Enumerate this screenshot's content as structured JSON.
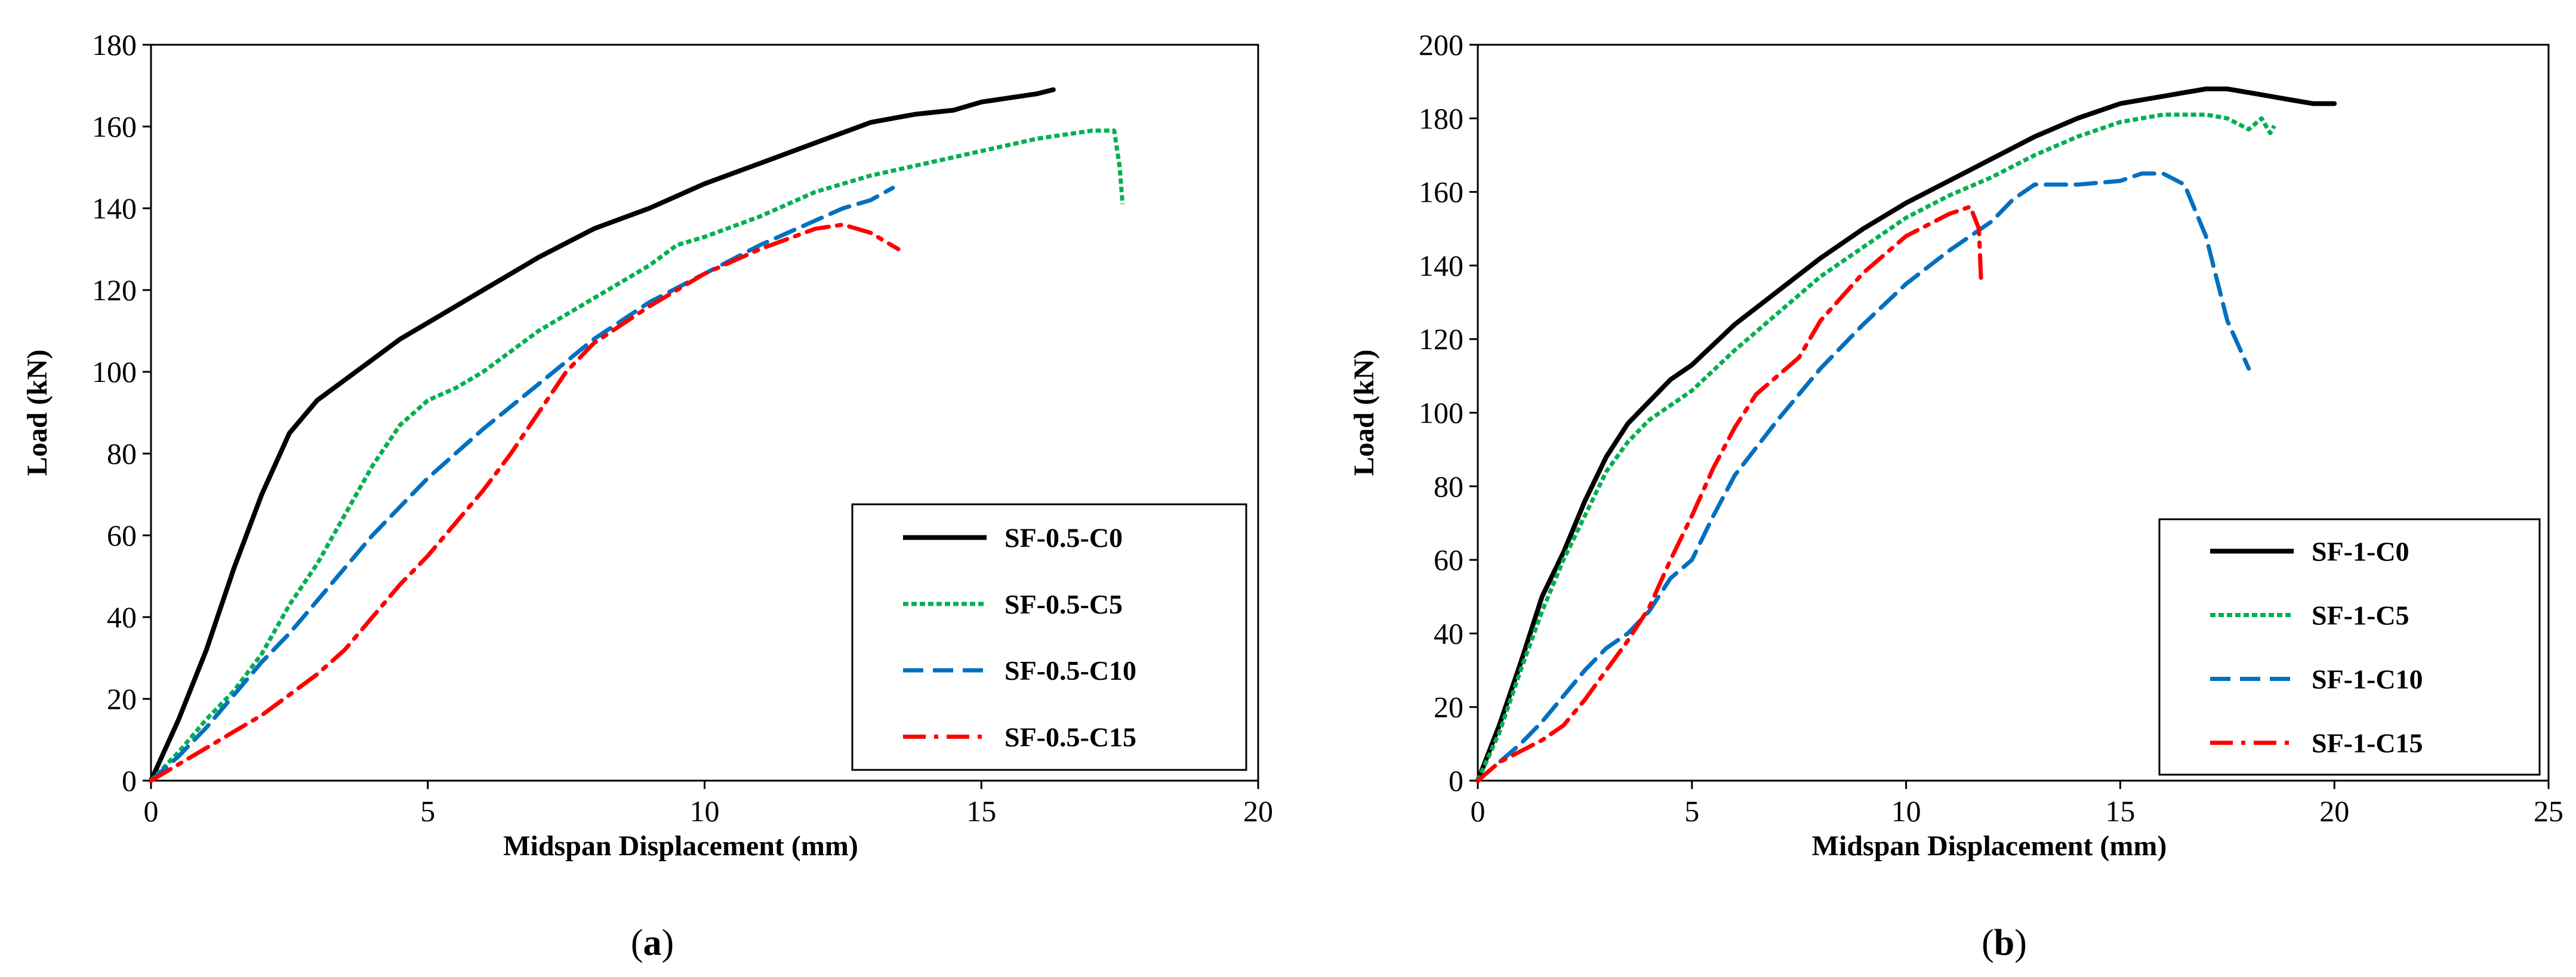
{
  "chart_data": [
    {
      "type": "line",
      "panel_label": "(a)",
      "panel_prefix": "(",
      "panel_letter": "a",
      "panel_suffix": ")",
      "xlabel": "Midspan Displacement (mm)",
      "ylabel": "Load (kN)",
      "xlim": [
        0,
        20
      ],
      "ylim": [
        0,
        180
      ],
      "xticks": [
        0,
        5,
        10,
        15,
        20
      ],
      "yticks": [
        0,
        20,
        40,
        60,
        80,
        100,
        120,
        140,
        160,
        180
      ],
      "grid": false,
      "legend_position": "bottom-right",
      "series": [
        {
          "name": "SF-0.5-C0",
          "color": "#000000",
          "style": "solid",
          "points": [
            [
              0,
              0
            ],
            [
              0.5,
              15
            ],
            [
              1,
              32
            ],
            [
              1.5,
              52
            ],
            [
              2,
              70
            ],
            [
              2.5,
              85
            ],
            [
              3,
              93
            ],
            [
              3.5,
              98
            ],
            [
              4,
              103
            ],
            [
              4.5,
              108
            ],
            [
              5,
              112
            ],
            [
              6,
              120
            ],
            [
              7,
              128
            ],
            [
              8,
              135
            ],
            [
              9,
              140
            ],
            [
              10,
              146
            ],
            [
              11,
              151
            ],
            [
              12,
              156
            ],
            [
              13,
              161
            ],
            [
              13.8,
              163
            ],
            [
              14.5,
              164
            ],
            [
              15,
              166
            ],
            [
              16,
              168
            ],
            [
              16.3,
              169
            ]
          ]
        },
        {
          "name": "SF-0.5-C5",
          "color": "#00b050",
          "style": "dotted",
          "points": [
            [
              0,
              0
            ],
            [
              0.5,
              7
            ],
            [
              1,
              15
            ],
            [
              1.5,
              22
            ],
            [
              2,
              31
            ],
            [
              2.5,
              43
            ],
            [
              3,
              53
            ],
            [
              3.5,
              65
            ],
            [
              4,
              77
            ],
            [
              4.5,
              87
            ],
            [
              5,
              93
            ],
            [
              5.5,
              96
            ],
            [
              6,
              100
            ],
            [
              7,
              110
            ],
            [
              8,
              118
            ],
            [
              9,
              126
            ],
            [
              9.5,
              131
            ],
            [
              10,
              133
            ],
            [
              11,
              138
            ],
            [
              12,
              144
            ],
            [
              13,
              148
            ],
            [
              14,
              151
            ],
            [
              15,
              154
            ],
            [
              16,
              157
            ],
            [
              17,
              159
            ],
            [
              17.4,
              159
            ],
            [
              17.5,
              150
            ],
            [
              17.55,
              141
            ]
          ]
        },
        {
          "name": "SF-0.5-C10",
          "color": "#0070c0",
          "style": "dashed",
          "points": [
            [
              0,
              0
            ],
            [
              0.5,
              6
            ],
            [
              1,
              13
            ],
            [
              1.5,
              21
            ],
            [
              2,
              29
            ],
            [
              2.5,
              36
            ],
            [
              3,
              44
            ],
            [
              3.5,
              52
            ],
            [
              4,
              60
            ],
            [
              4.5,
              67
            ],
            [
              5,
              74
            ],
            [
              5.5,
              80
            ],
            [
              6,
              86
            ],
            [
              7,
              97
            ],
            [
              8,
              108
            ],
            [
              9,
              117
            ],
            [
              10,
              124
            ],
            [
              11,
              131
            ],
            [
              12,
              137
            ],
            [
              12.5,
              140
            ],
            [
              13,
              142
            ],
            [
              13.4,
              145
            ]
          ]
        },
        {
          "name": "SF-0.5-C15",
          "color": "#ff0000",
          "style": "dashdot",
          "points": [
            [
              0,
              0
            ],
            [
              0.5,
              4
            ],
            [
              1,
              8
            ],
            [
              1.5,
              12
            ],
            [
              2,
              16
            ],
            [
              2.5,
              21
            ],
            [
              3,
              26
            ],
            [
              3.5,
              32
            ],
            [
              4,
              40
            ],
            [
              4.5,
              48
            ],
            [
              5,
              55
            ],
            [
              5.5,
              63
            ],
            [
              6,
              71
            ],
            [
              6.5,
              80
            ],
            [
              7,
              90
            ],
            [
              7.5,
              100
            ],
            [
              8,
              107
            ],
            [
              9,
              116
            ],
            [
              10,
              124
            ],
            [
              11,
              130
            ],
            [
              12,
              135
            ],
            [
              12.5,
              136
            ],
            [
              13,
              134
            ],
            [
              13.5,
              130
            ]
          ]
        }
      ]
    },
    {
      "type": "line",
      "panel_label": "(b)",
      "panel_prefix": "(",
      "panel_letter": "b",
      "panel_suffix": ")",
      "xlabel": "Midspan Displacement (mm)",
      "ylabel": "Load (kN)",
      "xlim": [
        0,
        25
      ],
      "ylim": [
        0,
        200
      ],
      "xticks": [
        0,
        5,
        10,
        15,
        20,
        25
      ],
      "yticks": [
        0,
        20,
        40,
        60,
        80,
        100,
        120,
        140,
        160,
        180,
        200
      ],
      "grid": false,
      "legend_position": "bottom-right",
      "series": [
        {
          "name": "SF-1-C0",
          "color": "#000000",
          "style": "solid",
          "points": [
            [
              0,
              0
            ],
            [
              0.5,
              15
            ],
            [
              1,
              32
            ],
            [
              1.5,
              50
            ],
            [
              2,
              62
            ],
            [
              2.5,
              76
            ],
            [
              3,
              88
            ],
            [
              3.5,
              97
            ],
            [
              4,
              103
            ],
            [
              4.5,
              109
            ],
            [
              5,
              113
            ],
            [
              6,
              124
            ],
            [
              7,
              133
            ],
            [
              8,
              142
            ],
            [
              9,
              150
            ],
            [
              10,
              157
            ],
            [
              11,
              163
            ],
            [
              12,
              169
            ],
            [
              13,
              175
            ],
            [
              14,
              180
            ],
            [
              15,
              184
            ],
            [
              16,
              186
            ],
            [
              16.5,
              187
            ],
            [
              17,
              188
            ],
            [
              17.5,
              188
            ],
            [
              18,
              187
            ],
            [
              19,
              185
            ],
            [
              19.5,
              184
            ],
            [
              20,
              184
            ]
          ]
        },
        {
          "name": "SF-1-C5",
          "color": "#00b050",
          "style": "dotted",
          "points": [
            [
              0,
              0
            ],
            [
              0.5,
              13
            ],
            [
              1,
              30
            ],
            [
              1.5,
              46
            ],
            [
              2,
              60
            ],
            [
              2.5,
              72
            ],
            [
              3,
              84
            ],
            [
              3.5,
              92
            ],
            [
              4,
              98
            ],
            [
              5,
              106
            ],
            [
              6,
              117
            ],
            [
              7,
              127
            ],
            [
              8,
              137
            ],
            [
              9,
              145
            ],
            [
              10,
              153
            ],
            [
              11,
              159
            ],
            [
              12,
              164
            ],
            [
              13,
              170
            ],
            [
              14,
              175
            ],
            [
              15,
              179
            ],
            [
              16,
              181
            ],
            [
              17,
              181
            ],
            [
              17.5,
              180
            ],
            [
              18,
              177
            ],
            [
              18.3,
              180
            ],
            [
              18.5,
              176
            ],
            [
              18.6,
              178
            ]
          ]
        },
        {
          "name": "SF-1-C10",
          "color": "#0070c0",
          "style": "dashed",
          "points": [
            [
              0,
              0
            ],
            [
              0.5,
              5
            ],
            [
              1,
              10
            ],
            [
              1.5,
              16
            ],
            [
              2,
              23
            ],
            [
              2.5,
              30
            ],
            [
              3,
              36
            ],
            [
              3.5,
              40
            ],
            [
              4,
              46
            ],
            [
              4.5,
              55
            ],
            [
              5,
              60
            ],
            [
              5.5,
              72
            ],
            [
              6,
              83
            ],
            [
              7,
              98
            ],
            [
              8,
              112
            ],
            [
              9,
              124
            ],
            [
              10,
              135
            ],
            [
              11,
              144
            ],
            [
              12,
              152
            ],
            [
              12.5,
              158
            ],
            [
              13,
              162
            ],
            [
              14,
              162
            ],
            [
              15,
              163
            ],
            [
              15.5,
              165
            ],
            [
              16,
              165
            ],
            [
              16.5,
              162
            ],
            [
              17,
              148
            ],
            [
              17.5,
              125
            ],
            [
              18,
              112
            ]
          ]
        },
        {
          "name": "SF-1-C15",
          "color": "#ff0000",
          "style": "dashdot",
          "points": [
            [
              0,
              0
            ],
            [
              0.5,
              5
            ],
            [
              1,
              8
            ],
            [
              1.5,
              11
            ],
            [
              2,
              15
            ],
            [
              2.5,
              22
            ],
            [
              3,
              30
            ],
            [
              3.5,
              38
            ],
            [
              4,
              47
            ],
            [
              4.5,
              60
            ],
            [
              5,
              72
            ],
            [
              5.5,
              85
            ],
            [
              6,
              96
            ],
            [
              6.5,
              105
            ],
            [
              7,
              110
            ],
            [
              7.5,
              115
            ],
            [
              8,
              125
            ],
            [
              9,
              138
            ],
            [
              10,
              148
            ],
            [
              11,
              154
            ],
            [
              11.5,
              156
            ],
            [
              11.7,
              150
            ],
            [
              11.75,
              136
            ]
          ]
        }
      ]
    }
  ]
}
